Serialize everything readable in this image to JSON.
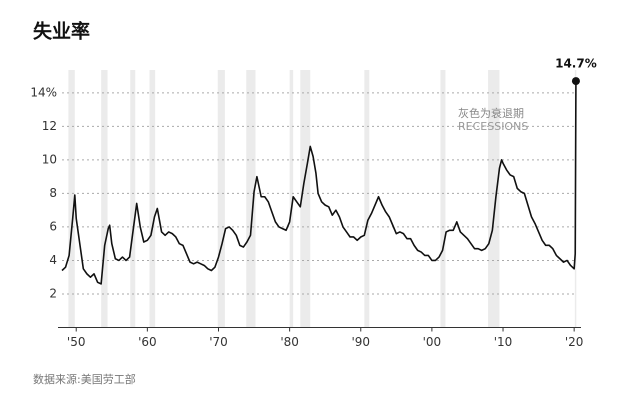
{
  "chart_data": {
    "type": "line",
    "title": "失业率",
    "source": "数据来源:美国劳工部",
    "annotation": "灰色为衰退期",
    "annotation_en": "RECESSIONS",
    "last_label": "14.7%",
    "color": "#111111",
    "recession_color": "#ebebeb",
    "grid": true,
    "xlim": [
      1948,
      2020.4
    ],
    "ylim": [
      0,
      15.6
    ],
    "yticks": [
      2,
      4,
      6,
      8,
      10,
      12,
      {
        "value": 14,
        "label": "14%"
      }
    ],
    "xticks": [
      {
        "value": 1950,
        "label": "'50"
      },
      {
        "value": 1960,
        "label": "'60"
      },
      {
        "value": 1970,
        "label": "'70"
      },
      {
        "value": 1980,
        "label": "'80"
      },
      {
        "value": 1990,
        "label": "'90"
      },
      {
        "value": 2000,
        "label": "'00"
      },
      {
        "value": 2010,
        "label": "'10"
      },
      {
        "value": 2020,
        "label": "'20"
      }
    ],
    "recessions": [
      [
        1948.9,
        1949.8
      ],
      [
        1953.5,
        1954.4
      ],
      [
        1957.6,
        1958.3
      ],
      [
        1960.3,
        1961.1
      ],
      [
        1969.9,
        1970.9
      ],
      [
        1973.9,
        1975.2
      ],
      [
        1980.0,
        1980.5
      ],
      [
        1981.5,
        1982.9
      ],
      [
        1990.5,
        1991.2
      ],
      [
        2001.2,
        2001.9
      ],
      [
        2007.9,
        2009.5
      ],
      [
        2020.1,
        2020.3
      ]
    ],
    "x": [
      1948.0,
      1948.5,
      1949.0,
      1949.5,
      1949.8,
      1950.0,
      1950.5,
      1951.0,
      1951.5,
      1952.0,
      1952.5,
      1953.0,
      1953.5,
      1954.0,
      1954.5,
      1954.7,
      1955.0,
      1955.5,
      1956.0,
      1956.5,
      1957.0,
      1957.5,
      1958.0,
      1958.5,
      1959.0,
      1959.5,
      1960.0,
      1960.5,
      1961.0,
      1961.4,
      1962.0,
      1962.5,
      1963.0,
      1963.5,
      1964.0,
      1964.5,
      1965.0,
      1965.5,
      1966.0,
      1966.5,
      1967.0,
      1967.5,
      1968.0,
      1968.5,
      1969.0,
      1969.5,
      1970.0,
      1970.5,
      1971.0,
      1971.5,
      1972.0,
      1972.5,
      1973.0,
      1973.5,
      1974.0,
      1974.5,
      1975.0,
      1975.4,
      1976.0,
      1976.5,
      1977.0,
      1977.5,
      1978.0,
      1978.5,
      1979.0,
      1979.5,
      1980.0,
      1980.5,
      1981.0,
      1981.5,
      1982.0,
      1982.5,
      1982.9,
      1983.3,
      1983.7,
      1984.0,
      1984.5,
      1985.0,
      1985.5,
      1986.0,
      1986.5,
      1987.0,
      1987.5,
      1988.0,
      1988.5,
      1989.0,
      1989.5,
      1990.0,
      1990.5,
      1991.0,
      1991.5,
      1992.0,
      1992.5,
      1993.0,
      1993.5,
      1994.0,
      1994.5,
      1995.0,
      1995.5,
      1996.0,
      1996.5,
      1997.0,
      1997.5,
      1998.0,
      1998.5,
      1999.0,
      1999.5,
      2000.0,
      2000.5,
      2001.0,
      2001.5,
      2002.0,
      2002.5,
      2003.0,
      2003.5,
      2004.0,
      2004.5,
      2005.0,
      2005.5,
      2006.0,
      2006.5,
      2007.0,
      2007.5,
      2008.0,
      2008.5,
      2009.0,
      2009.5,
      2009.8,
      2010.0,
      2010.5,
      2011.0,
      2011.5,
      2012.0,
      2012.5,
      2013.0,
      2013.5,
      2014.0,
      2014.5,
      2015.0,
      2015.5,
      2016.0,
      2016.5,
      2017.0,
      2017.5,
      2018.0,
      2018.5,
      2019.0,
      2019.5,
      2020.0,
      2020.15,
      2020.25
    ],
    "values": [
      3.4,
      3.6,
      4.3,
      6.5,
      7.9,
      6.5,
      5.0,
      3.5,
      3.2,
      3.0,
      3.2,
      2.7,
      2.6,
      4.9,
      5.9,
      6.1,
      5.0,
      4.1,
      4.0,
      4.2,
      4.0,
      4.2,
      5.8,
      7.4,
      6.0,
      5.1,
      5.2,
      5.5,
      6.6,
      7.1,
      5.7,
      5.5,
      5.7,
      5.6,
      5.4,
      5.0,
      4.9,
      4.4,
      3.9,
      3.8,
      3.9,
      3.8,
      3.7,
      3.5,
      3.4,
      3.6,
      4.2,
      5.0,
      5.9,
      6.0,
      5.8,
      5.5,
      4.9,
      4.8,
      5.1,
      5.5,
      8.1,
      9.0,
      7.8,
      7.8,
      7.5,
      6.9,
      6.3,
      6.0,
      5.9,
      5.8,
      6.3,
      7.8,
      7.5,
      7.2,
      8.6,
      9.8,
      10.8,
      10.2,
      9.2,
      8.0,
      7.5,
      7.3,
      7.2,
      6.7,
      7.0,
      6.6,
      6.0,
      5.7,
      5.4,
      5.4,
      5.2,
      5.4,
      5.5,
      6.4,
      6.8,
      7.3,
      7.8,
      7.3,
      6.9,
      6.6,
      6.1,
      5.6,
      5.7,
      5.6,
      5.3,
      5.3,
      4.9,
      4.6,
      4.5,
      4.3,
      4.3,
      4.0,
      4.0,
      4.2,
      4.6,
      5.7,
      5.8,
      5.8,
      6.3,
      5.7,
      5.5,
      5.3,
      5.0,
      4.7,
      4.7,
      4.6,
      4.7,
      5.0,
      5.8,
      7.8,
      9.5,
      10.0,
      9.8,
      9.4,
      9.1,
      9.0,
      8.3,
      8.1,
      8.0,
      7.3,
      6.6,
      6.2,
      5.7,
      5.2,
      4.9,
      4.9,
      4.7,
      4.3,
      4.1,
      3.9,
      4.0,
      3.7,
      3.5,
      4.4,
      14.7
    ]
  }
}
